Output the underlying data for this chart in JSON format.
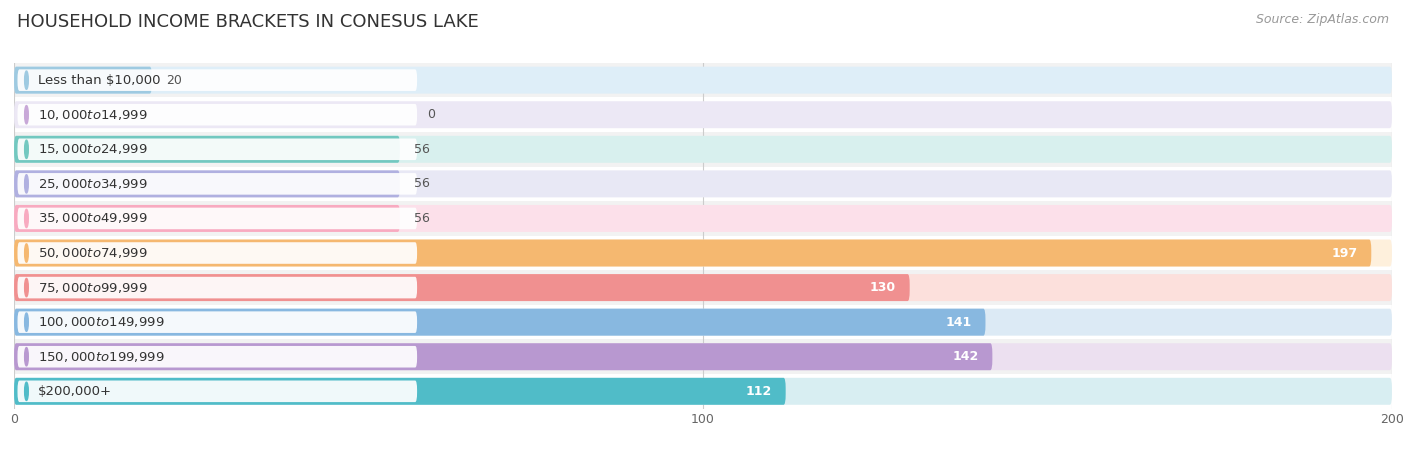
{
  "title": "HOUSEHOLD INCOME BRACKETS IN CONESUS LAKE",
  "source": "Source: ZipAtlas.com",
  "categories": [
    "Less than $10,000",
    "$10,000 to $14,999",
    "$15,000 to $24,999",
    "$25,000 to $34,999",
    "$35,000 to $49,999",
    "$50,000 to $74,999",
    "$75,000 to $99,999",
    "$100,000 to $149,999",
    "$150,000 to $199,999",
    "$200,000+"
  ],
  "values": [
    20,
    0,
    56,
    56,
    56,
    197,
    130,
    141,
    142,
    112
  ],
  "bar_colors": [
    "#9ecae1",
    "#c8a8d8",
    "#72c8c0",
    "#b0b0e0",
    "#f8aac0",
    "#f5b870",
    "#f09090",
    "#88b8e0",
    "#b898d0",
    "#50bcc8"
  ],
  "bg_colors": [
    "#deeef8",
    "#ece8f5",
    "#d8f0ee",
    "#e8e8f5",
    "#fce0ea",
    "#fef0dc",
    "#fce0dc",
    "#dceaf5",
    "#ece0f0",
    "#d8eef2"
  ],
  "row_sep_color": "#e0e0e0",
  "xlim": [
    0,
    200
  ],
  "xlabel_ticks": [
    0,
    100,
    200
  ],
  "title_fontsize": 13,
  "label_fontsize": 9.5,
  "value_fontsize": 9,
  "source_fontsize": 9,
  "background_color": "#ffffff",
  "row_bg_alt": "#f2f2f2",
  "row_bg_main": "#ffffff"
}
